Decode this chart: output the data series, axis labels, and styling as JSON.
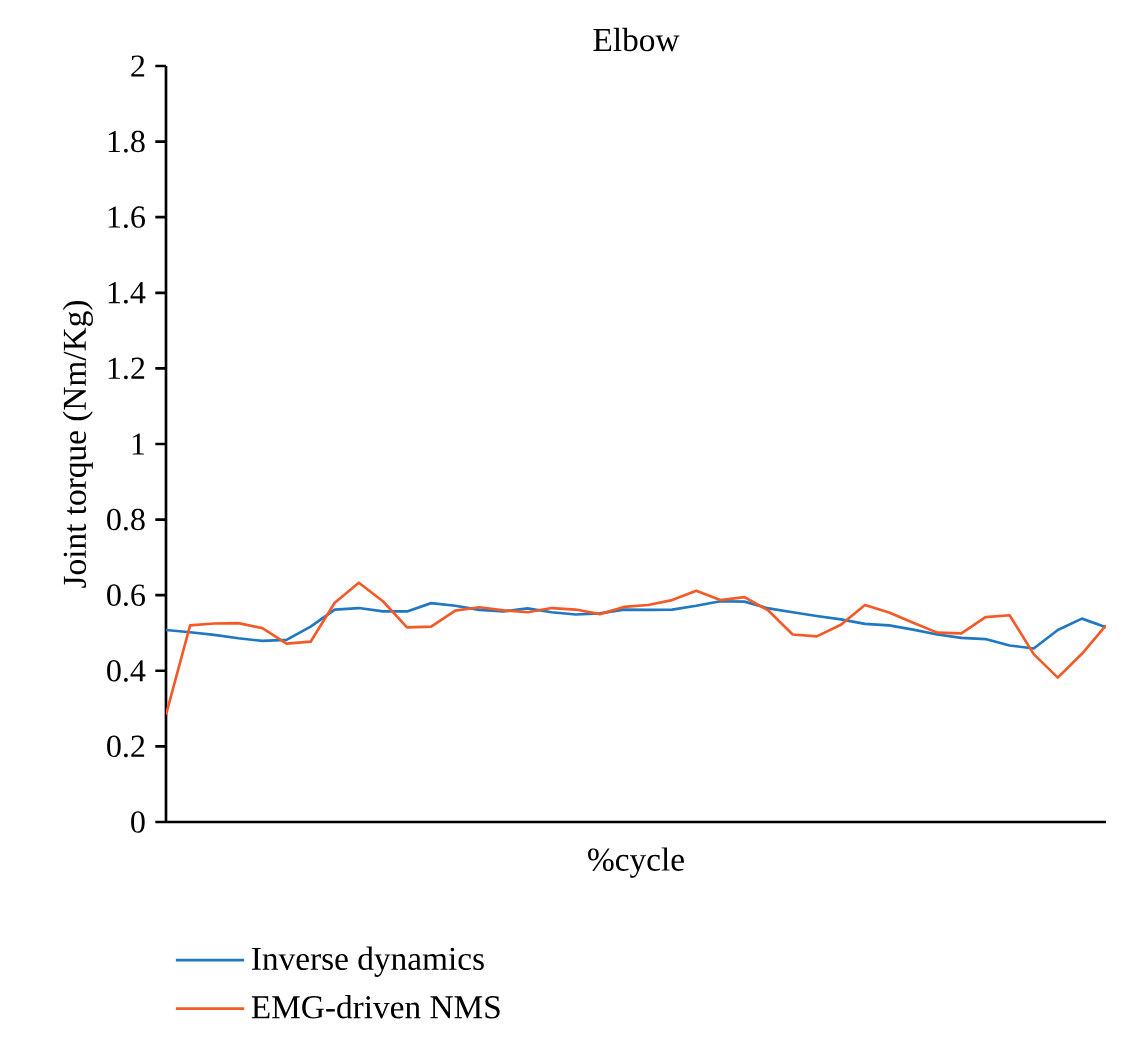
{
  "chart_data": {
    "type": "line",
    "title": "Elbow",
    "xlabel": "%cycle",
    "ylabel": "Joint torque (Nm/Kg)",
    "categories": [
      null,
      null,
      null,
      null,
      null,
      null,
      null,
      null,
      null,
      null,
      null,
      null,
      null,
      null,
      null,
      null,
      null,
      null,
      null,
      null,
      null,
      null,
      null,
      null,
      null,
      null,
      null,
      null,
      null,
      null,
      null,
      null,
      null,
      null,
      null,
      null,
      null,
      null,
      null,
      null
    ],
    "ylim": [
      0,
      2
    ],
    "yticks": [
      {
        "value": 0,
        "label": "0"
      },
      {
        "value": 0.2,
        "label": "0.2"
      },
      {
        "value": 0.4,
        "label": "0.4"
      },
      {
        "value": 0.6,
        "label": "0.6"
      },
      {
        "value": 0.8,
        "label": "0.8"
      },
      {
        "value": 1,
        "label": "1"
      },
      {
        "value": 1.2,
        "label": "1.2"
      },
      {
        "value": 1.4,
        "label": "1.4"
      },
      {
        "value": 1.6,
        "label": "1.6"
      },
      {
        "value": 1.8,
        "label": "1.8"
      },
      {
        "value": 2,
        "label": "2"
      }
    ],
    "legend": "bottom left",
    "series": [
      {
        "name": "Inverse dynamics",
        "color": "#1f78c1",
        "values": [
          0.508,
          0.502,
          0.495,
          0.486,
          0.479,
          0.482,
          0.517,
          0.562,
          0.566,
          0.557,
          0.557,
          0.579,
          0.572,
          0.561,
          0.557,
          0.565,
          0.555,
          0.549,
          0.552,
          0.562,
          0.561,
          0.562,
          0.572,
          0.584,
          0.583,
          0.565,
          0.555,
          0.545,
          0.536,
          0.524,
          0.52,
          0.509,
          0.496,
          0.487,
          0.484,
          0.467,
          0.459,
          0.508,
          0.538,
          0.515
        ]
      },
      {
        "name": "EMG-driven NMS",
        "color": "#f25a28",
        "values": [
          0.284,
          0.52,
          0.525,
          0.526,
          0.513,
          0.472,
          0.477,
          0.58,
          0.633,
          0.584,
          0.515,
          0.517,
          0.559,
          0.568,
          0.56,
          0.555,
          0.566,
          0.562,
          0.55,
          0.569,
          0.574,
          0.587,
          0.612,
          0.587,
          0.595,
          0.559,
          0.496,
          0.491,
          0.522,
          0.574,
          0.554,
          0.527,
          0.501,
          0.499,
          0.542,
          0.547,
          0.444,
          0.382,
          0.445,
          0.52
        ]
      }
    ]
  }
}
